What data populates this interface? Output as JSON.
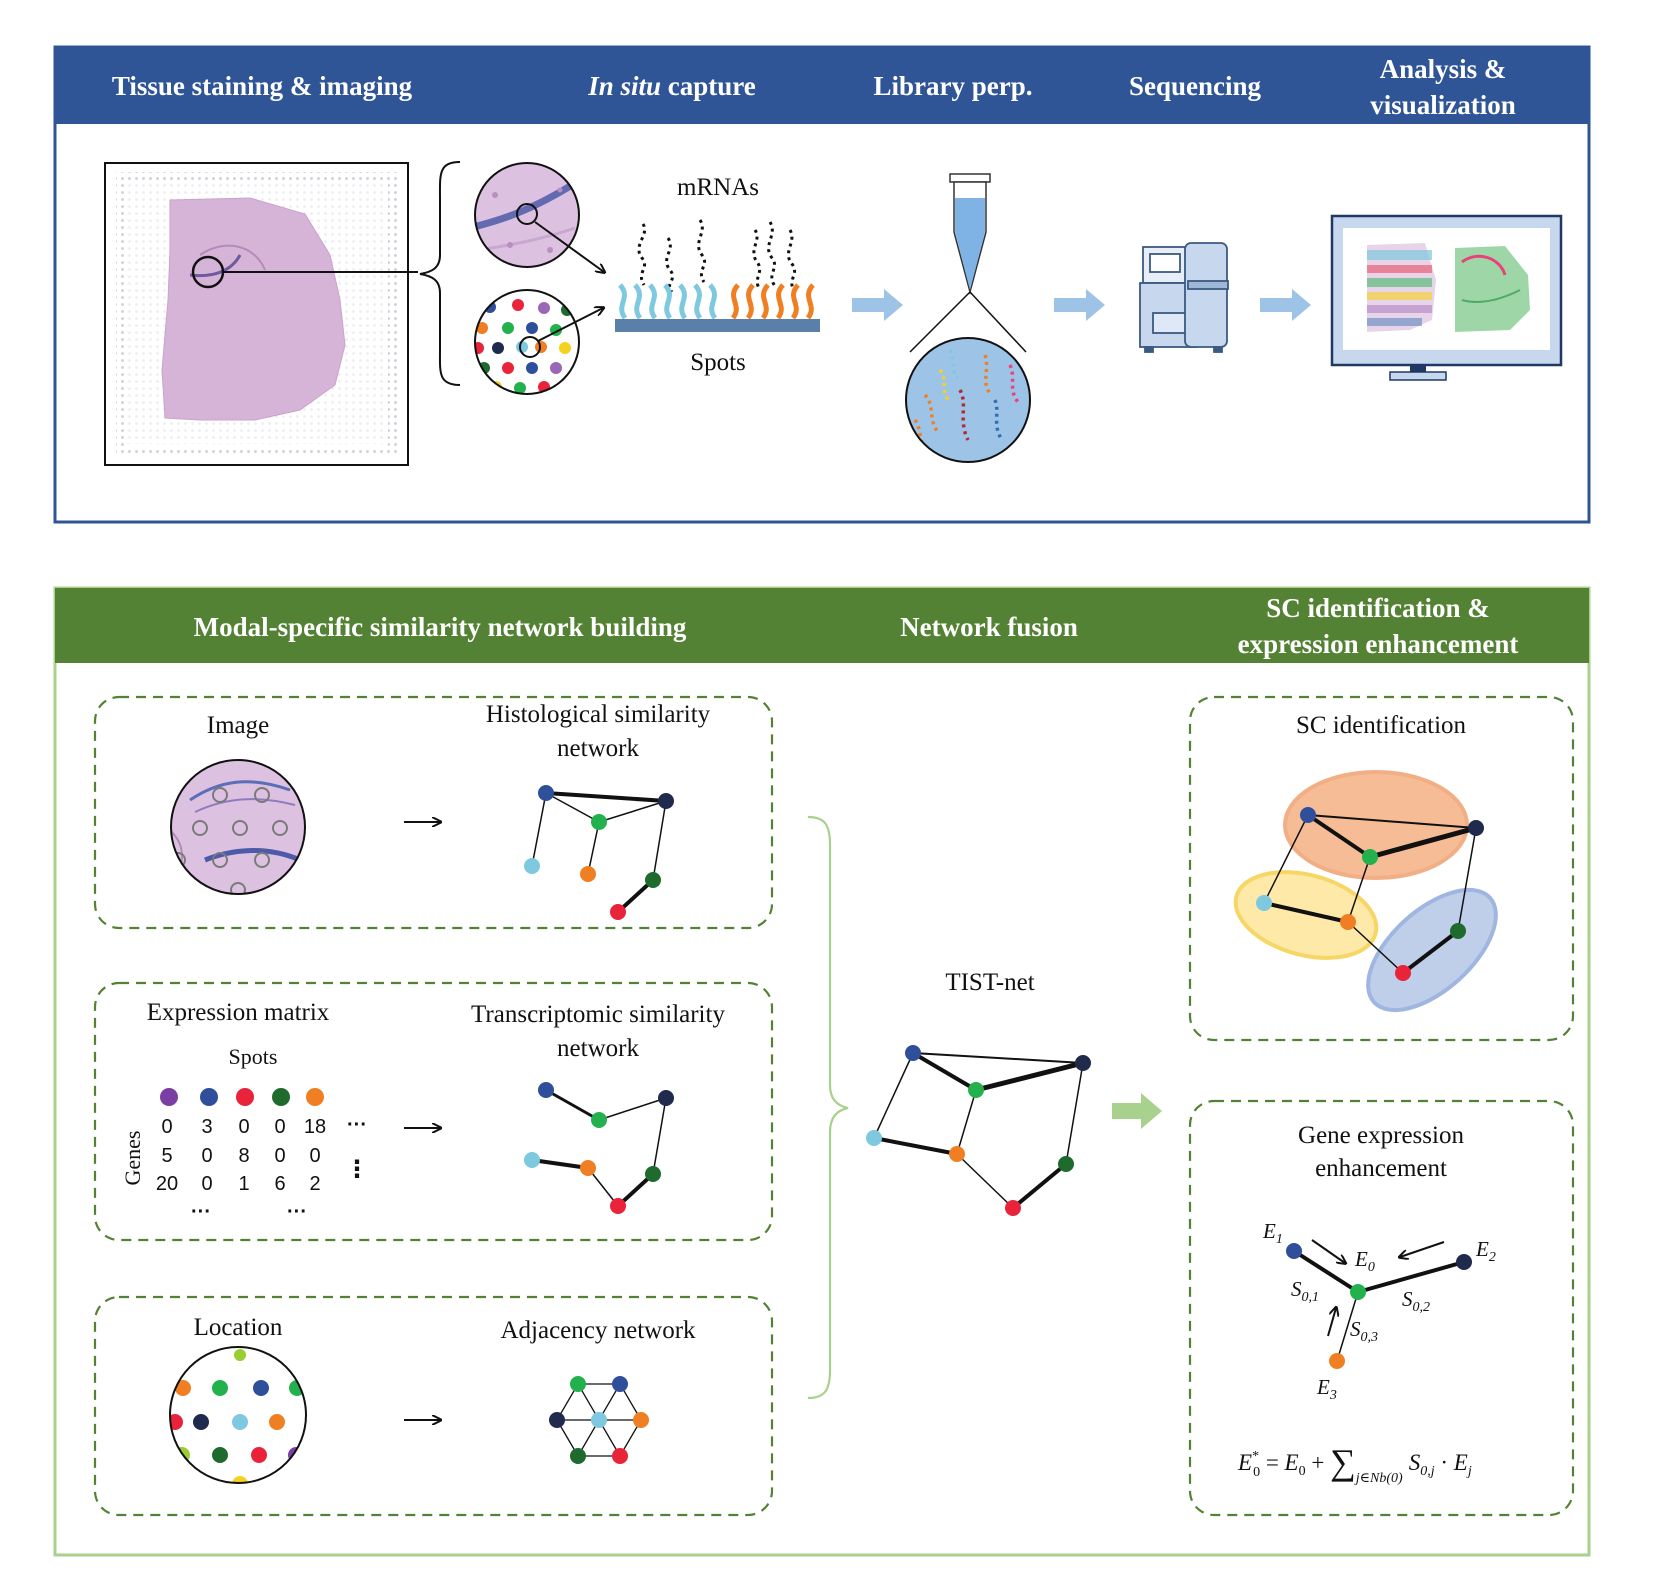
{
  "colors": {
    "top_header": "#2f5597",
    "bottom_header": "#548235",
    "bottom_border": "#a9d18e",
    "arrow_blue": "#9dc3e6",
    "arrow_green": "#a9d18e",
    "tissue": "#d6b4d8",
    "node_blue": "#2f4f9a",
    "node_navy": "#1f2a4d",
    "node_green": "#22b14c",
    "node_orange": "#ef7f22",
    "node_cyan": "#7ec8e0",
    "node_red": "#e8233a",
    "node_darkgreen": "#1e6b2d"
  },
  "top_panel": {
    "headers": {
      "tissue": "Tissue staining & imaging",
      "capture_italic": "In situ",
      "capture_rest": " capture",
      "library": "Library perp.",
      "sequencing": "Sequencing",
      "analysis_1": "Analysis &",
      "analysis_2": "visualization"
    },
    "mrnas_label": "mRNAs",
    "spots_label": "Spots"
  },
  "bottom_panel": {
    "headers": {
      "modal": "Modal-specific similarity network building",
      "fusion": "Network fusion",
      "sc_1": "SC identification &",
      "sc_2": "expression enhancement"
    },
    "image_box": {
      "left_label": "Image",
      "right_label_1": "Histological similarity",
      "right_label_2": "network"
    },
    "expr_box": {
      "left_label": "Expression matrix",
      "spots_label": "Spots",
      "genes_label": "Genes",
      "right_label_1": "Transcriptomic similarity",
      "right_label_2": "network",
      "matrix": [
        [
          "0",
          "3",
          "0",
          "0",
          "18"
        ],
        [
          "5",
          "0",
          "8",
          "0",
          "0"
        ],
        [
          "20",
          "0",
          "1",
          "6",
          "2"
        ]
      ],
      "ellipsis_h": "···",
      "ellipsis_v": "⋮"
    },
    "loc_box": {
      "left_label": "Location",
      "right_label": "Adjacency network"
    },
    "fusion_label": "TIST-net",
    "sc_box": {
      "label": "SC identification"
    },
    "ge_box": {
      "label_1": "Gene expression",
      "label_2": "enhancement",
      "E0": "E",
      "E0_sub": "0",
      "E1": "E",
      "E1_sub": "1",
      "E2": "E",
      "E2_sub": "2",
      "E3": "E",
      "E3_sub": "3",
      "S01": "S",
      "S01_sub": "0,1",
      "S02": "S",
      "S02_sub": "0,2",
      "S03": "S",
      "S03_sub": "0,3",
      "formula_lhs": "E",
      "formula_lhs_sup": "*",
      "formula_lhs_sub": "0",
      "formula_eq": " = ",
      "formula_e0": "E",
      "formula_e0_sub": "0",
      "formula_plus": " + ",
      "formula_sum": "∑",
      "formula_sum_sub": "j∈Nb(0)",
      "formula_s": "S",
      "formula_s_sub": "0,j",
      "formula_dot": " · ",
      "formula_ej": "E",
      "formula_ej_sub": "j"
    }
  }
}
